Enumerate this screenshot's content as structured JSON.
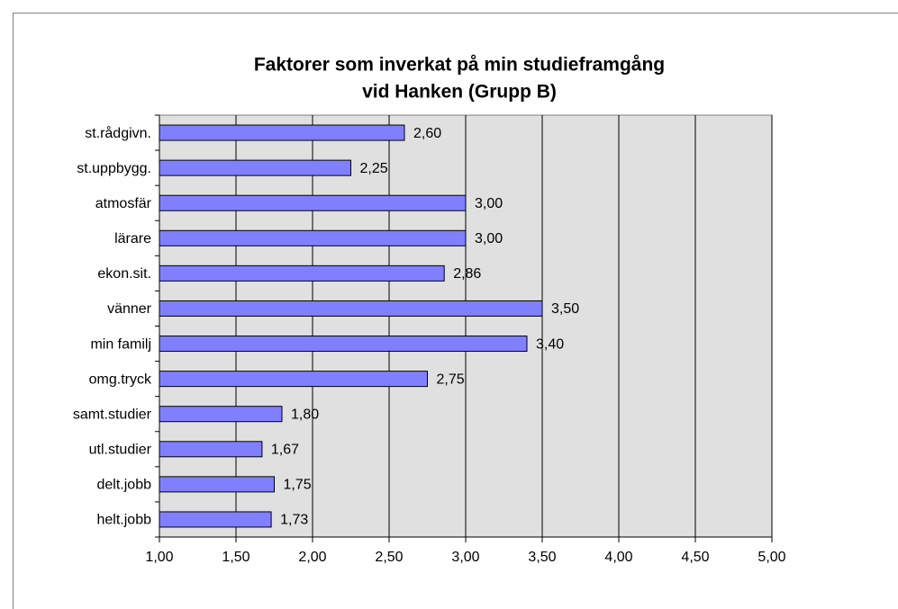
{
  "chart_data": {
    "type": "hbar",
    "title": [
      "Faktorer som inverkat på min studieframgång",
      "vid Hanken (Grupp B)"
    ],
    "categories": [
      "st.rådgivn.",
      "st.uppbygg.",
      "atmosfär",
      "lärare",
      "ekon.sit.",
      "vänner",
      "min familj",
      "omg.tryck",
      "samt.studier",
      "utl.studier",
      "delt.jobb",
      "helt.jobb"
    ],
    "values": [
      2.6,
      2.25,
      3.0,
      3.0,
      2.86,
      3.5,
      3.4,
      2.75,
      1.8,
      1.67,
      1.75,
      1.73
    ],
    "value_labels": [
      "2,60",
      "2,25",
      "3,00",
      "3,00",
      "2,86",
      "3,50",
      "3,40",
      "2,75",
      "1,80",
      "1,67",
      "1,75",
      "1,73"
    ],
    "color": "#8080ff",
    "xlim": [
      1,
      5
    ],
    "xticks": [
      {
        "value": 1,
        "label": "1,00"
      },
      {
        "value": 1.5,
        "label": "1,50"
      },
      {
        "value": 2,
        "label": "2,00"
      },
      {
        "value": 2.5,
        "label": "2,50"
      },
      {
        "value": 3,
        "label": "3,00"
      },
      {
        "value": 3.5,
        "label": "3,50"
      },
      {
        "value": 4,
        "label": "4,00"
      },
      {
        "value": 4.5,
        "label": "4,50"
      },
      {
        "value": 5,
        "label": "5,00"
      }
    ],
    "grid": true
  }
}
